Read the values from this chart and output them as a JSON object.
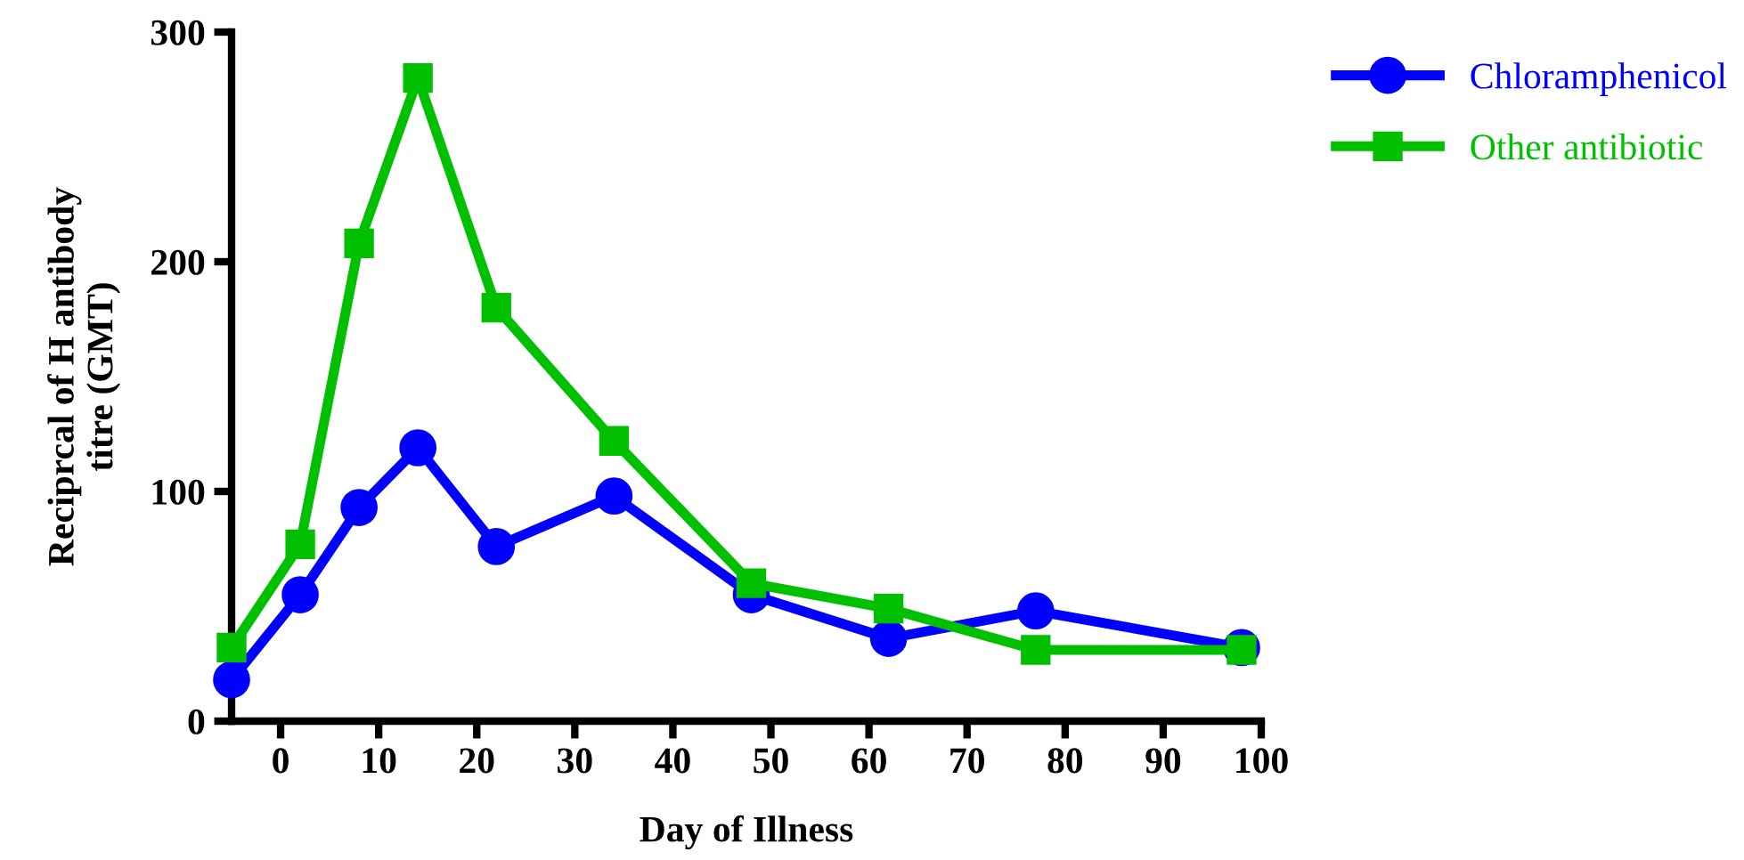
{
  "chart_data": {
    "type": "line",
    "xlabel": "Day of Illness",
    "ylabel": "Reciprcal of H antibody\ntitre (GMT)",
    "x": [
      -5,
      2,
      8,
      14,
      22,
      34,
      48,
      62,
      77,
      98
    ],
    "series": [
      {
        "name": "Chloramphenicol",
        "color": "#0000ff",
        "marker": "circle",
        "values": [
          18,
          55,
          93,
          119,
          76,
          98,
          55,
          36,
          48,
          32
        ]
      },
      {
        "name": "Other antibiotic",
        "color": "#00c000",
        "marker": "square",
        "values": [
          32,
          77,
          208,
          280,
          180,
          122,
          60,
          49,
          31,
          31
        ]
      }
    ],
    "xlim": [
      -5,
      100
    ],
    "xticks": [
      0,
      10,
      20,
      30,
      40,
      50,
      60,
      70,
      80,
      90,
      100
    ],
    "ylim": [
      0,
      300
    ],
    "yticks": [
      0,
      100,
      200,
      300
    ],
    "grid": false,
    "legend": "right",
    "line_style": "solid"
  }
}
